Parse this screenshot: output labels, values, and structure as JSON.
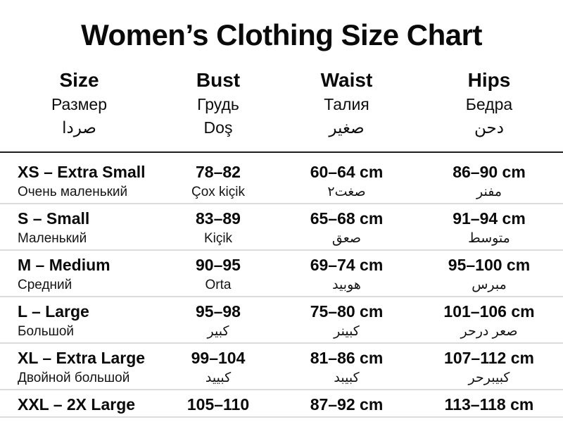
{
  "header": {
    "title": "Women’s Clothing Size Chart"
  },
  "colors": {
    "text": "#0d0d0d",
    "header_rule": "#1c1c1c",
    "row_rule": "#dcdcdc",
    "background": "#ffffff"
  },
  "table": {
    "columns": [
      {
        "line1": "Size",
        "line2": "Размер",
        "line3": "صردا"
      },
      {
        "line1": "Bust",
        "line2": "Грудь",
        "line3": "Doş"
      },
      {
        "line1": "Waist",
        "line2": "Талия",
        "line3": "صغير"
      },
      {
        "line1": "Hips",
        "line2": "Бедра",
        "line3": "دحن"
      }
    ],
    "rows": [
      {
        "size": "XS – Extra Small",
        "size_sub": "Очень маленький",
        "bust": "78–82",
        "bust_sub": "Çox kiçik",
        "waist": "60–64 cm",
        "waist_sub": "صغت٢",
        "hips": "86–90 cm",
        "hips_sub": "مفنر"
      },
      {
        "size": "S – Small",
        "size_sub": "Маленький",
        "bust": "83–89",
        "bust_sub": "Kiçik",
        "waist": "65–68 cm",
        "waist_sub": "صعق",
        "hips": "91–94 cm",
        "hips_sub": "متوسط"
      },
      {
        "size": "M – Medium",
        "size_sub": "Средний",
        "bust": "90–95",
        "bust_sub": "Orta",
        "waist": "69–74 cm",
        "waist_sub": "هوبيد",
        "hips": "95–100 cm",
        "hips_sub": "مبرس"
      },
      {
        "size": "L – Large",
        "size_sub": "Большой",
        "bust": "95–98",
        "bust_sub": "كبير",
        "waist": "75–80 cm",
        "waist_sub": "كبينر",
        "hips": "101–106 cm",
        "hips_sub": "صعر درحر"
      },
      {
        "size": "XL – Extra Large",
        "size_sub": "Двойной большой",
        "bust": "99–104",
        "bust_sub": "كبييد",
        "waist": "81–86 cm",
        "waist_sub": "كبيبد",
        "hips": "107–112 cm",
        "hips_sub": "كبيبرحر"
      },
      {
        "size": "XXL – 2X Large",
        "size_sub": "",
        "bust": "105–110",
        "bust_sub": "",
        "waist": "87–92 cm",
        "waist_sub": "",
        "hips": "113–118 cm",
        "hips_sub": ""
      }
    ]
  }
}
